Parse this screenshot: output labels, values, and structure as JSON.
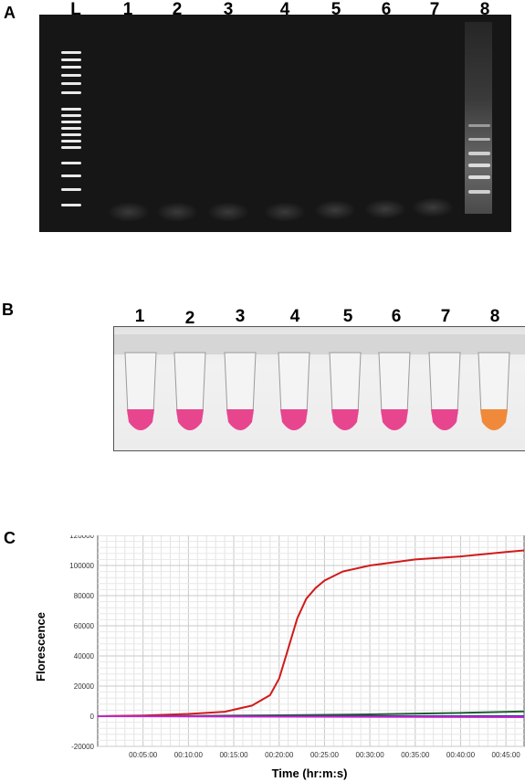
{
  "panels": {
    "a": {
      "label": "A",
      "lanes": [
        "L",
        "1",
        "2",
        "3",
        "4",
        "5",
        "6",
        "7",
        "8"
      ]
    },
    "b": {
      "label": "B",
      "tubes": [
        {
          "label": "1",
          "color": "#e8458f"
        },
        {
          "label": "2",
          "color": "#e8458f"
        },
        {
          "label": "3",
          "color": "#e8458f"
        },
        {
          "label": "4",
          "color": "#e8458f"
        },
        {
          "label": "5",
          "color": "#e8458f"
        },
        {
          "label": "6",
          "color": "#e8458f"
        },
        {
          "label": "7",
          "color": "#e8458f"
        },
        {
          "label": "8",
          "color": "#f08a3a"
        }
      ]
    },
    "c": {
      "label": "C",
      "ylabel": "Florescence",
      "xlabel": "Time (hr:m:s)"
    }
  },
  "chart_data": {
    "type": "line",
    "title": "",
    "xlabel": "Time (hr:m:s)",
    "ylabel": "Florescence",
    "x_tick_labels": [
      "00:05:00",
      "00:10:00",
      "00:15:00",
      "00:20:00",
      "00:25:00",
      "00:30:00",
      "00:35:00",
      "00:40:00",
      "00:45:00"
    ],
    "y_tick_labels": [
      "-20000",
      "0",
      "20000",
      "40000",
      "60000",
      "80000",
      "100000",
      "120000"
    ],
    "xlim_minutes": [
      0,
      47
    ],
    "ylim": [
      -20000,
      120000
    ],
    "grid": true,
    "series": [
      {
        "color": "#d11a1a",
        "x": [
          0,
          5,
          10,
          14,
          17,
          19,
          20,
          21,
          22,
          23,
          24,
          25,
          27,
          30,
          35,
          40,
          45,
          47
        ],
        "y": [
          0,
          500,
          1500,
          3000,
          7000,
          14000,
          25000,
          45000,
          65000,
          78000,
          85000,
          90000,
          96000,
          100000,
          104000,
          106000,
          109000,
          110000
        ]
      },
      {
        "color": "#1f5c2c",
        "x": [
          0,
          10,
          20,
          30,
          40,
          47
        ],
        "y": [
          0,
          200,
          600,
          1200,
          2200,
          3200
        ]
      },
      {
        "color": "#2a2aa8",
        "x": [
          0,
          47
        ],
        "y": [
          0,
          0
        ]
      },
      {
        "color": "#c127c9",
        "x": [
          0,
          47
        ],
        "y": [
          0,
          -600
        ]
      }
    ]
  }
}
